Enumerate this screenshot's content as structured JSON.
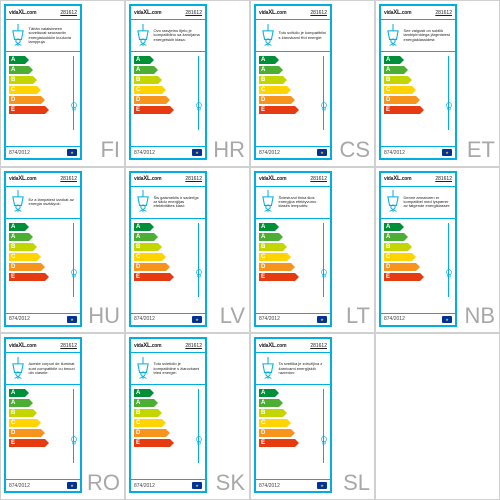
{
  "grid_cols": 4,
  "grid_rows": 3,
  "border_color": "#d0d0d0",
  "card_border_color": "#00aee0",
  "lang_code_color": "#a8a8a8",
  "logo_text": "vidaXL.com",
  "product_code": "281612",
  "regulation": "874/2012",
  "energy_letters": [
    "A",
    "A",
    "B",
    "C",
    "D",
    "E"
  ],
  "energy_colors": [
    "#008f39",
    "#4cae33",
    "#c4d600",
    "#ffd400",
    "#f7941e",
    "#e63b11"
  ],
  "energy_widths": [
    16,
    20,
    24,
    28,
    32,
    36
  ],
  "cells": [
    {
      "lang": "FI",
      "desc": "Tähän valaisimeen soveltuvat seuraaviin energialuokkiin kuuluvia lamppuja"
    },
    {
      "lang": "HR",
      "desc": "Ovo rasvjetno tijelo je kompatibilno sa žaruljama energetskih klasa:"
    },
    {
      "lang": "CS",
      "desc": "Toto svítidlo je kompatibilní s žárovkami tříd energie:"
    },
    {
      "lang": "ET",
      "desc": "See valgusti on sobilik lambipirnidega järgmistest energiaklassidest:"
    },
    {
      "lang": "HU",
      "desc": "Ez a lámpatest izzókat az energia osztályok:"
    },
    {
      "lang": "LV",
      "desc": "Šis gaismeklis ir saderīgs ar šādu enerģijas efektivitātes klasi:"
    },
    {
      "lang": "LT",
      "desc": "Šviestuvui tinka šios energijos efektyvumo klasės lemputės:"
    },
    {
      "lang": "NB",
      "desc": "Denne armaturen er kompatibel med lyspærer av følgende energiklasser:"
    },
    {
      "lang": "RO",
      "desc": "Aceste corpuri de iluminat sunt compatibile cu becuri din clasele:"
    },
    {
      "lang": "SK",
      "desc": "Toto svietidlo je kompatibilné s žiarovkami tried energie:"
    },
    {
      "lang": "SL",
      "desc": "Ta svetilka je združljiva z žarnicami energijskih razredov:"
    }
  ]
}
